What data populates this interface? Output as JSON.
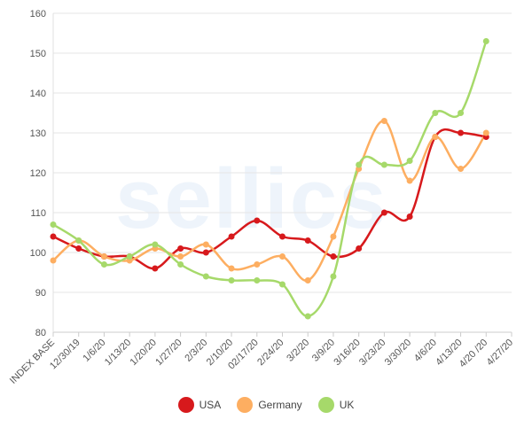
{
  "chart_data": {
    "type": "line",
    "watermark": "sellics",
    "categories": [
      "INDEX BASE",
      "12/30/19",
      "1/6/20",
      "1/13/20",
      "1/20/20",
      "1/27/20",
      "2/3/20",
      "2/10/20",
      "02/17/20",
      "2/24/20",
      "3/2/20",
      "3/9/20",
      "3/16/20",
      "3/23/20",
      "3/30/20",
      "4/6/20",
      "4/13/20",
      "4/20 /20",
      "4/27/20"
    ],
    "series": [
      {
        "name": "USA",
        "color": "#d7191c",
        "values": [
          104,
          101,
          99,
          99,
          96,
          101,
          100,
          104,
          108,
          104,
          103,
          99,
          101,
          110,
          109,
          129,
          130,
          129,
          null
        ]
      },
      {
        "name": "Germany",
        "color": "#fdae61",
        "values": [
          98,
          103,
          99,
          98,
          101,
          99,
          102,
          96,
          97,
          99,
          93,
          104,
          121,
          133,
          118,
          129,
          121,
          130,
          null
        ]
      },
      {
        "name": "UK",
        "color": "#a6d96a",
        "values": [
          107,
          103,
          97,
          99,
          102,
          97,
          94,
          93,
          93,
          92,
          84,
          94,
          122,
          122,
          123,
          135,
          135,
          153,
          null
        ]
      }
    ],
    "yticks": [
      80,
      90,
      100,
      110,
      120,
      130,
      140,
      150,
      160
    ],
    "ylim": [
      80,
      160
    ],
    "grid": true,
    "legend_position": "bottom-center"
  }
}
